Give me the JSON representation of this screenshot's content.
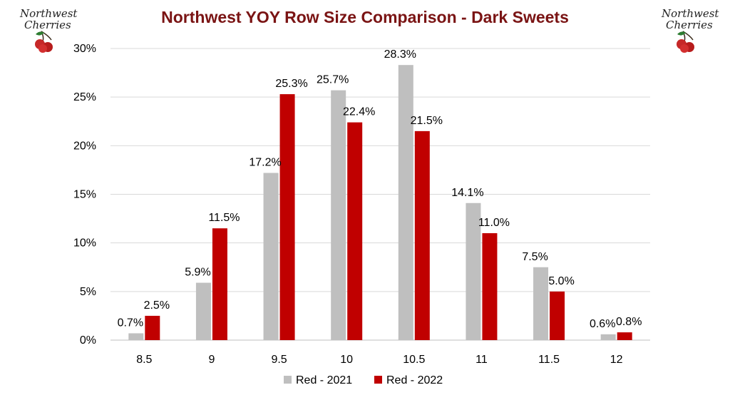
{
  "logo": {
    "line1": "Northwest",
    "line2": "Cherries"
  },
  "chart_data": {
    "type": "bar",
    "title": "Northwest YOY Row Size Comparison - Dark Sweets",
    "xlabel": "",
    "ylabel": "",
    "categories": [
      "8.5",
      "9",
      "9.5",
      "10",
      "10.5",
      "11",
      "11.5",
      "12"
    ],
    "series": [
      {
        "name": "Red - 2021",
        "color": "#bfbfbf",
        "values": [
          0.7,
          5.9,
          17.2,
          25.7,
          28.3,
          14.1,
          7.5,
          0.6
        ],
        "labels": [
          "0.7%",
          "5.9%",
          "17.2%",
          "25.7%",
          "28.3%",
          "14.1%",
          "7.5%",
          "0.6%"
        ]
      },
      {
        "name": "Red - 2022",
        "color": "#c00000",
        "values": [
          2.5,
          11.5,
          25.3,
          22.4,
          21.5,
          11.0,
          5.0,
          0.8
        ],
        "labels": [
          "2.5%",
          "11.5%",
          "25.3%",
          "22.4%",
          "21.5%",
          "11.0%",
          "5.0%",
          "0.8%"
        ]
      }
    ],
    "ylim": [
      0,
      30
    ],
    "yticks": [
      "0%",
      "5%",
      "10%",
      "15%",
      "20%",
      "25%",
      "30%"
    ],
    "grid": true,
    "legend": "bottom"
  }
}
